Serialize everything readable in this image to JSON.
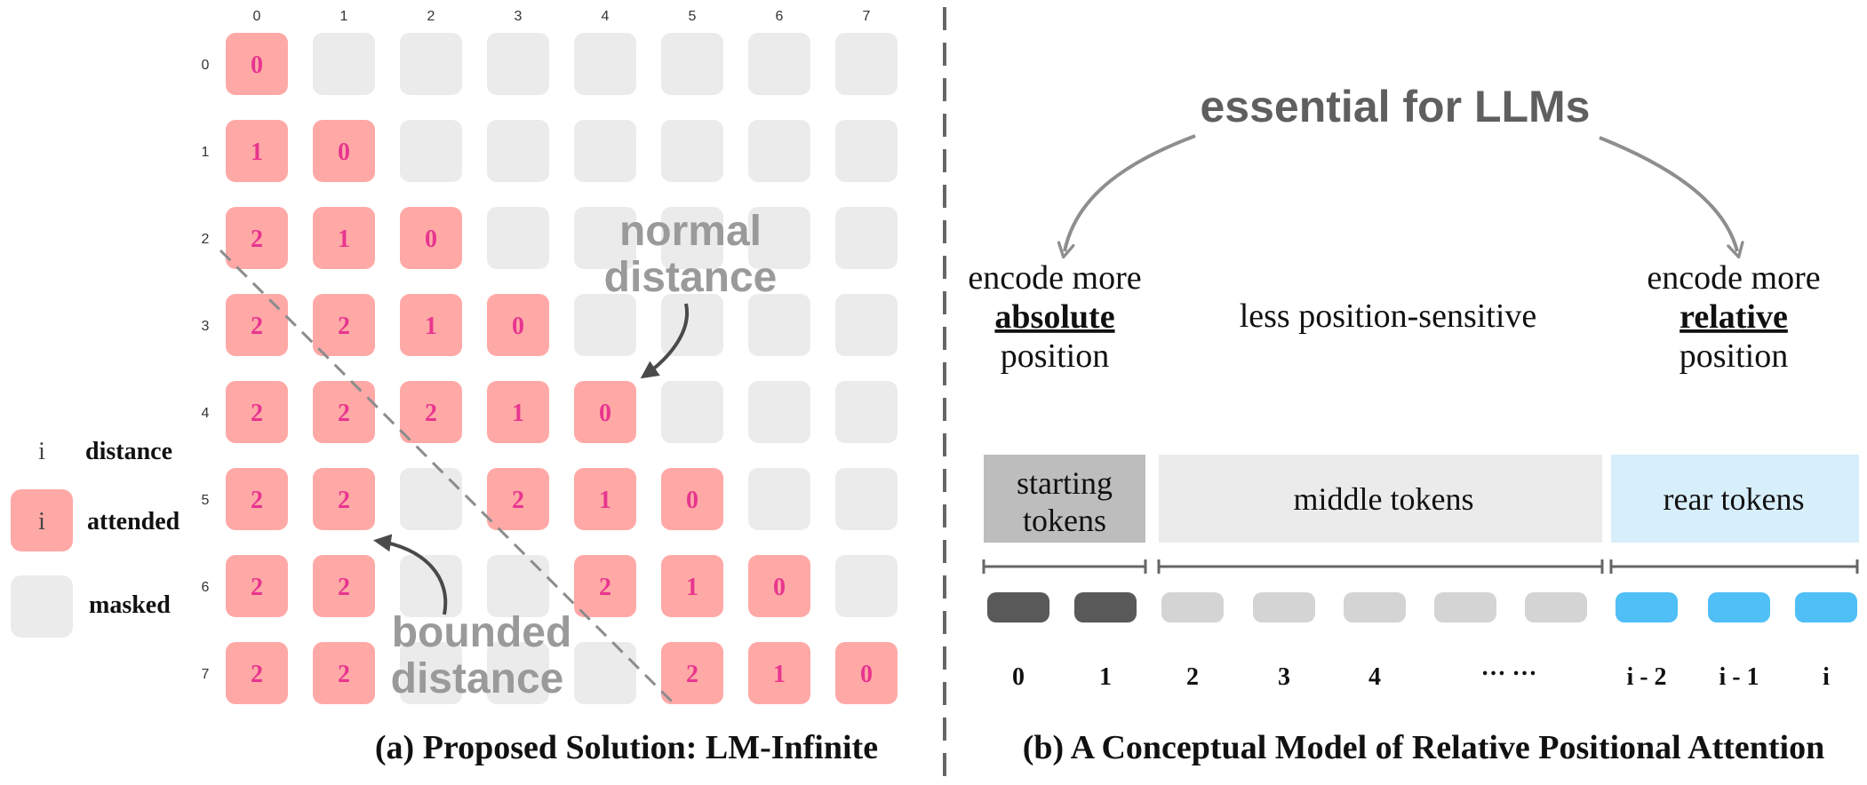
{
  "panel_a": {
    "col_labels": [
      "0",
      "1",
      "2",
      "3",
      "4",
      "5",
      "6",
      "7"
    ],
    "row_labels": [
      "0",
      "1",
      "2",
      "3",
      "4",
      "5",
      "6",
      "7"
    ],
    "cells": [
      [
        "0",
        "",
        "",
        "",
        "",
        "",
        "",
        ""
      ],
      [
        "1",
        "0",
        "",
        "",
        "",
        "",
        "",
        ""
      ],
      [
        "2",
        "1",
        "0",
        "",
        "",
        "",
        "",
        ""
      ],
      [
        "2",
        "2",
        "1",
        "0",
        "",
        "",
        "",
        ""
      ],
      [
        "2",
        "2",
        "2",
        "1",
        "0",
        "",
        "",
        ""
      ],
      [
        "2",
        "2",
        "",
        "2",
        "1",
        "0",
        "",
        ""
      ],
      [
        "2",
        "2",
        "",
        "",
        "2",
        "1",
        "0",
        ""
      ],
      [
        "2",
        "2",
        "",
        "",
        "",
        "2",
        "1",
        "0"
      ]
    ],
    "annotation_normal": [
      "normal",
      "distance"
    ],
    "annotation_bounded": [
      "bounded",
      "distance"
    ],
    "legend": {
      "distance_symbol": "i",
      "distance_label": "distance",
      "attended_symbol": "i",
      "attended_label": "attended",
      "masked_label": "masked"
    },
    "caption": "(a) Proposed Solution: LM-Infinite"
  },
  "panel_b": {
    "heading": "essential for LLMs",
    "left_text": {
      "line1": "encode more",
      "emph": "absolute",
      "line3": "position"
    },
    "center_text": "less position-sensitive",
    "right_text": {
      "line1": "encode more",
      "emph": "relative",
      "line3": "position"
    },
    "groups": {
      "starting": [
        "starting",
        "tokens"
      ],
      "middle": "middle tokens",
      "rear": "rear tokens"
    },
    "token_labels": [
      "0",
      "1",
      "2",
      "3",
      "4",
      "… …",
      "i - 2",
      "i - 1",
      "i"
    ],
    "caption": "(b) A Conceptual Model of Relative Positional Attention"
  },
  "colors": {
    "attended": "#ffa9a7",
    "attended_text": "#e8358f",
    "masked": "#ebebeb",
    "start_box": "#bdbdbd",
    "middle_box": "#ebebeb",
    "rear_box": "#d7eefb",
    "start_pill": "#595959",
    "middle_pill": "#d4d4d4",
    "rear_pill": "#4fbff5",
    "annotation": "#9a9a9a",
    "heading": "#5f5f5f"
  }
}
